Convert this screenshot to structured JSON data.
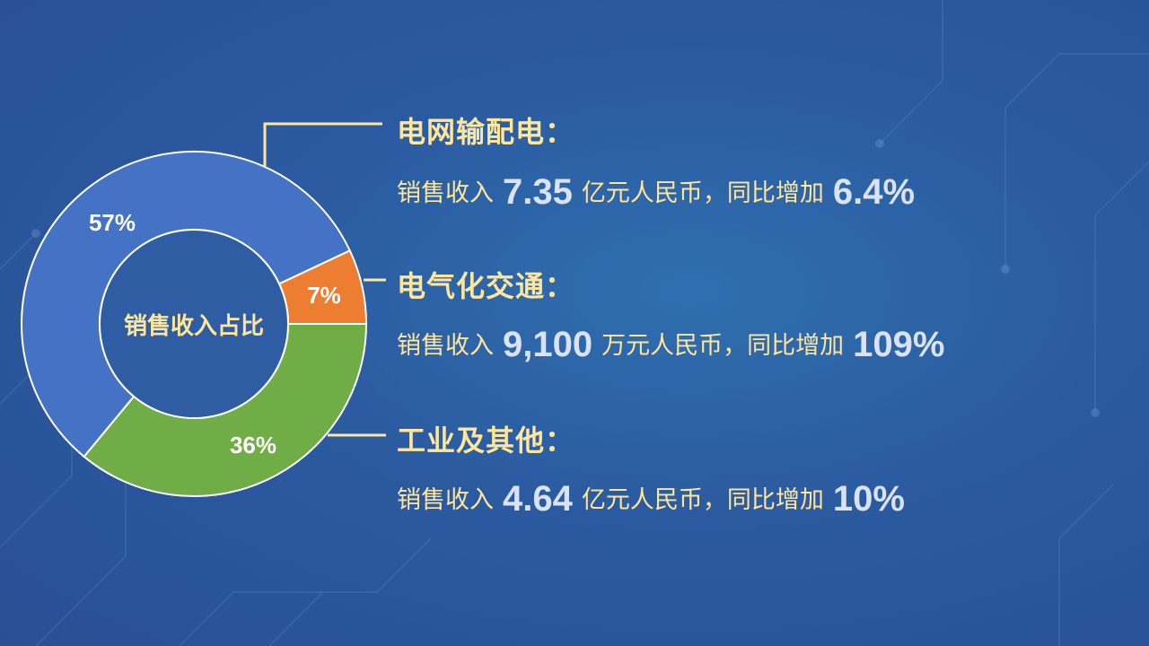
{
  "chart_data": {
    "type": "pie",
    "variant": "donut",
    "center_label": "销售收入占比",
    "categories": [
      "电网输配电",
      "电气化交通",
      "工业及其他"
    ],
    "values": [
      57,
      7,
      36
    ],
    "labels": [
      "57%",
      "7%",
      "36%"
    ],
    "colors": [
      "#4472c4",
      "#ed7d31",
      "#70ad47"
    ]
  },
  "items": [
    {
      "title": "电网输配电：",
      "prefix": "销售收入",
      "amount": "7.35",
      "unit": "亿元人民币，同比增加",
      "growth": "6.4%"
    },
    {
      "title": "电气化交通：",
      "prefix": "销售收入",
      "amount": "9,100",
      "unit": "万元人民币，同比增加",
      "growth": "109%"
    },
    {
      "title": "工业及其他：",
      "prefix": "销售收入",
      "amount": "4.64",
      "unit": "亿元人民币，同比增加",
      "growth": "10%"
    }
  ],
  "colors": {
    "accent_text": "#ffe699",
    "number_text": "#dae3f3",
    "background": "#2b5aa0"
  }
}
